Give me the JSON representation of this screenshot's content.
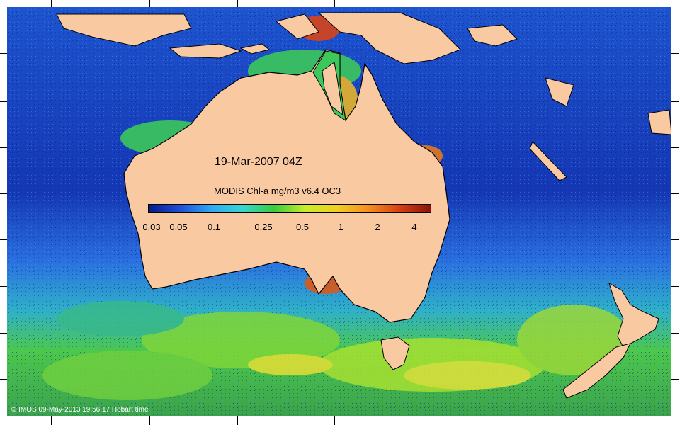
{
  "map": {
    "date_label": "19-Mar-2007 04Z",
    "colorbar": {
      "title": "MODIS Chl-a mg/m3 v6.4 OC3",
      "ticks": [
        "0.03",
        "0.05",
        "0.1",
        "0.25",
        "0.5",
        "1",
        "2",
        "4"
      ],
      "colors": [
        "#0a1a8c",
        "#1e4fd8",
        "#2fa8f0",
        "#35d6d0",
        "#3ccb3a",
        "#c8ee2a",
        "#f0d020",
        "#f59020",
        "#d84010",
        "#8a1408"
      ]
    },
    "credit": "© IMOS 09-May-2013 19:56:17 Hobart time",
    "colors": {
      "land": "#f9c9a2",
      "ocean_deep": "#1535b8",
      "ocean_mid": "#2f7fe6",
      "ocean_green": "#48c85a",
      "ocean_yellow": "#dfe43a"
    }
  }
}
